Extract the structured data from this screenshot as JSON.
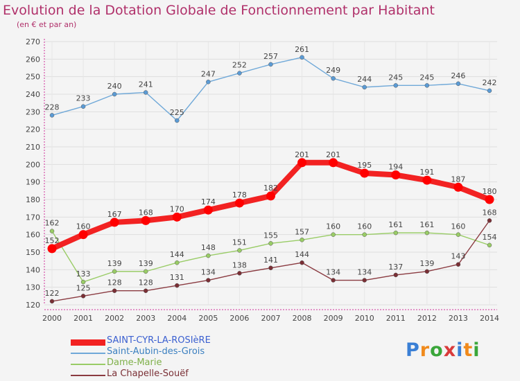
{
  "header": {
    "title": "Evolution de la Dotation Globale de Fonctionnement par Habitant",
    "subtitle": "(en € et par an)"
  },
  "logo": {
    "letters": [
      "P",
      "r",
      "o",
      "x",
      "i",
      "t",
      "i"
    ],
    "colors": [
      "#3a7fd5",
      "#f08a1c",
      "#3aa63a",
      "#d93a3a",
      "#3a7fd5",
      "#f08a1c",
      "#3aa63a"
    ]
  },
  "chart_data": {
    "type": "line",
    "title": "Evolution de la Dotation Globale de Fonctionnement par Habitant",
    "subtitle": "(en € et par an)",
    "x": [
      "2000",
      "2001",
      "2002",
      "2003",
      "2004",
      "2005",
      "2006",
      "2007",
      "2008",
      "2009",
      "2010",
      "2011",
      "2012",
      "2013",
      "2014"
    ],
    "ylim": [
      120,
      270
    ],
    "yticks": [
      120,
      130,
      140,
      150,
      160,
      170,
      180,
      190,
      200,
      210,
      220,
      230,
      240,
      250,
      260,
      270
    ],
    "grid": true,
    "legend_position": "bottom-left",
    "series": [
      {
        "name": "SAINT-CYR-LA-ROSIèRE",
        "color": "#ff0000",
        "line_color": "#f22222",
        "emphasis": true,
        "values": [
          152,
          160,
          167,
          168,
          170,
          174,
          178,
          182,
          201,
          201,
          195,
          194,
          191,
          187,
          180
        ]
      },
      {
        "name": "Saint-Aubin-des-Grois",
        "color": "#5b9bd5",
        "line_color": "#6fa8d8",
        "emphasis": false,
        "values": [
          228,
          233,
          240,
          241,
          225,
          247,
          252,
          257,
          261,
          249,
          244,
          245,
          245,
          246,
          242
        ]
      },
      {
        "name": "Dame-Marie",
        "color": "#99cc66",
        "line_color": "#99cc66",
        "emphasis": false,
        "values": [
          162,
          133,
          139,
          139,
          144,
          148,
          151,
          155,
          157,
          160,
          160,
          161,
          161,
          160,
          154
        ]
      },
      {
        "name": "La Chapelle-Souëf",
        "color": "#7a2f35",
        "line_color": "#8a3a40",
        "emphasis": false,
        "values": [
          122,
          125,
          128,
          128,
          131,
          134,
          138,
          141,
          144,
          134,
          134,
          137,
          139,
          143,
          168
        ]
      }
    ]
  }
}
